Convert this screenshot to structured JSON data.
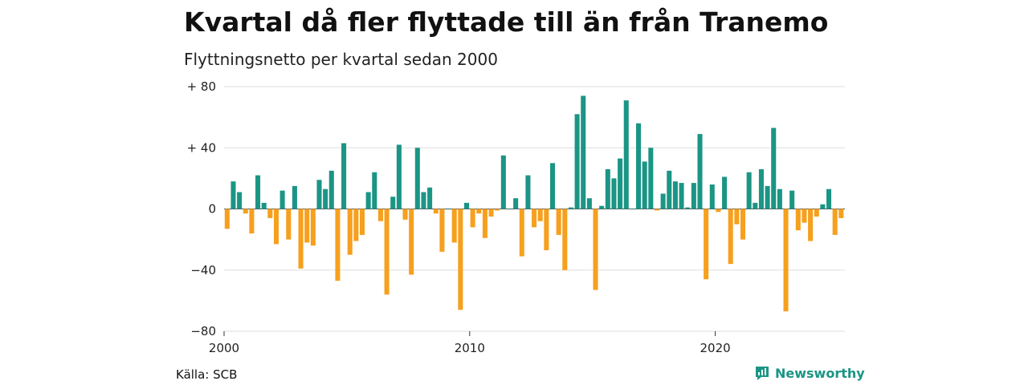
{
  "title": "Kvartal då fler flyttade till än från Tranemo",
  "subtitle": "Flyttningsnetto per kvartal sedan 2000",
  "source": "Källa: SCB",
  "brand": "Newsworthy",
  "colors": {
    "positive": "#1b9585",
    "negative": "#f6a01e",
    "grid": "#dddddd",
    "baseline": "#555555"
  },
  "chart_data": {
    "type": "bar",
    "x_start": "2000 Q1",
    "y_ticks": [
      {
        "value": 80,
        "label": "+ 80"
      },
      {
        "value": 40,
        "label": "+ 40"
      },
      {
        "value": 0,
        "label": "0"
      },
      {
        "value": -40,
        "label": "−40"
      },
      {
        "value": -80,
        "label": "−80"
      }
    ],
    "x_ticks": [
      {
        "year": 2000,
        "label": "2000"
      },
      {
        "year": 2010,
        "label": "2010"
      },
      {
        "year": 2020,
        "label": "2020"
      }
    ],
    "ylim": [
      -80,
      80
    ],
    "values": [
      -13,
      18,
      11,
      -3,
      -16,
      22,
      4,
      -6,
      -23,
      12,
      -20,
      15,
      -39,
      -22,
      -24,
      19,
      13,
      25,
      -47,
      43,
      -30,
      -21,
      -17,
      11,
      24,
      -8,
      -56,
      8,
      42,
      -7,
      -43,
      40,
      11,
      14,
      -3,
      -28,
      0,
      -22,
      -66,
      4,
      -12,
      -3,
      -19,
      -5,
      -1,
      35,
      0,
      7,
      -31,
      22,
      -12,
      -8,
      -27,
      30,
      -17,
      -40,
      1,
      62,
      74,
      7,
      -53,
      2,
      26,
      20,
      33,
      71,
      0,
      56,
      31,
      40,
      -1,
      10,
      25,
      18,
      17,
      1,
      17,
      49,
      -46,
      16,
      -2,
      21,
      -36,
      -10,
      -20,
      24,
      4,
      26,
      15,
      53,
      13,
      -67,
      12,
      -14,
      -9,
      -21,
      -5,
      3,
      13,
      -17,
      -6
    ]
  }
}
